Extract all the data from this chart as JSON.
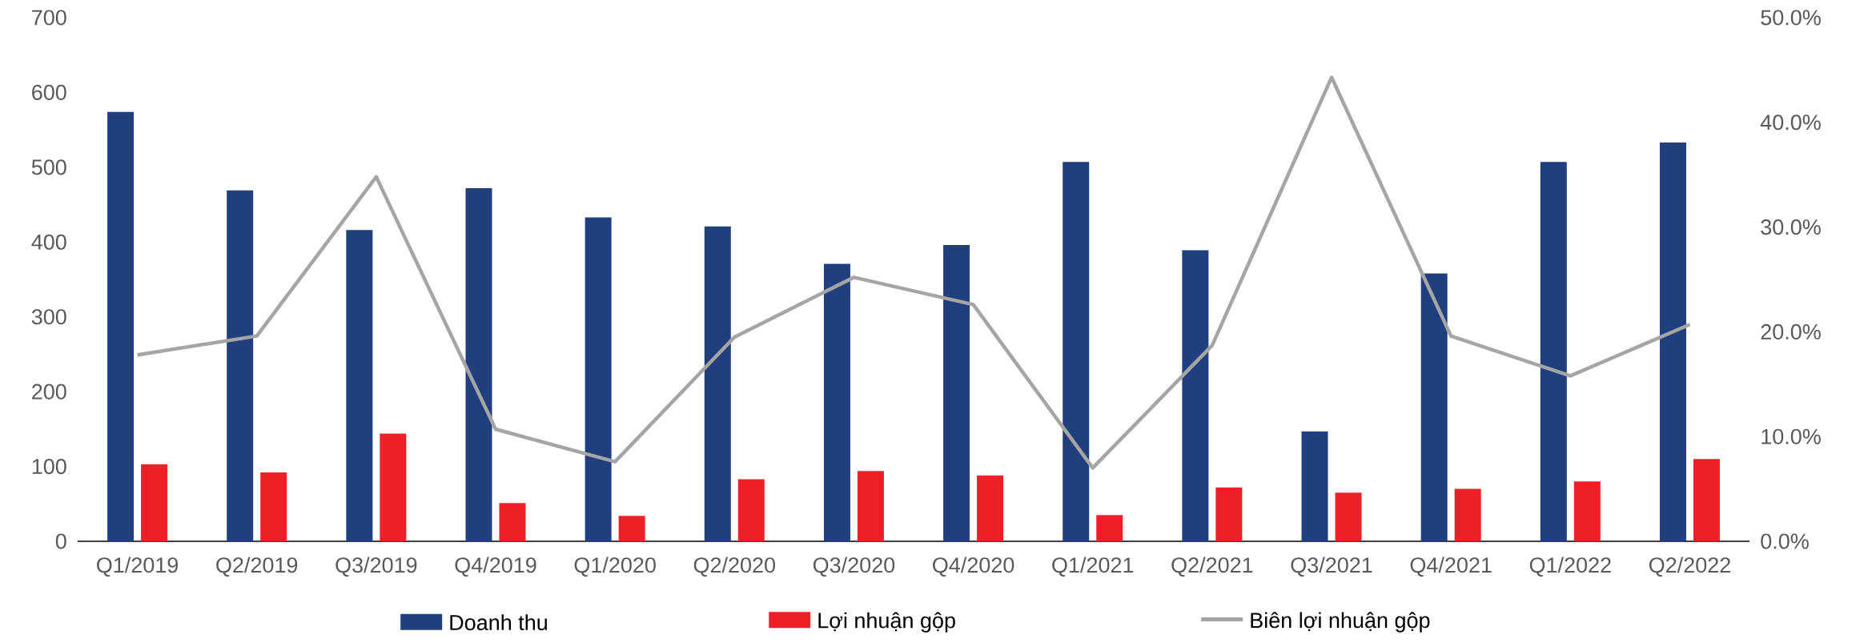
{
  "chart_data": {
    "type": "bar",
    "categories": [
      "Q1/2019",
      "Q2/2019",
      "Q3/2019",
      "Q4/2019",
      "Q1/2020",
      "Q2/2020",
      "Q3/2020",
      "Q4/2020",
      "Q1/2021",
      "Q2/2021",
      "Q3/2021",
      "Q4/2021",
      "Q1/2022",
      "Q2/2022"
    ],
    "series": [
      {
        "name": "Doanh thu",
        "color": "#1f3f7f",
        "values": [
          574,
          469,
          416,
          472,
          433,
          421,
          371,
          396,
          507,
          389,
          147,
          358,
          507,
          533
        ]
      },
      {
        "name": "Lợi nhuận gộp",
        "color": "#ee2027",
        "values": [
          103,
          92,
          144,
          51,
          34,
          83,
          94,
          88,
          35,
          72,
          65,
          70,
          80,
          110
        ]
      },
      {
        "name": "Biên lợi nhuận gộp",
        "color": "#a5a5a5",
        "type": "line",
        "axis": "y2",
        "values": [
          17.8,
          19.6,
          34.8,
          10.7,
          7.6,
          19.5,
          25.2,
          22.6,
          7.0,
          18.7,
          44.3,
          19.6,
          15.8,
          20.7
        ]
      }
    ],
    "ylim": [
      0,
      700
    ],
    "yticks": [
      0,
      100,
      200,
      300,
      400,
      500,
      600,
      700
    ],
    "y2lim": [
      0,
      50
    ],
    "y2ticks": [
      {
        "value": 0,
        "label": "0.0%"
      },
      {
        "value": 10,
        "label": "10.0%"
      },
      {
        "value": 20,
        "label": "20.0%"
      },
      {
        "value": 30,
        "label": "30.0%"
      },
      {
        "value": 40,
        "label": "40.0%"
      },
      {
        "value": 50,
        "label": "50.0%"
      }
    ],
    "legend": "bottom",
    "grid": false,
    "marker": "none"
  }
}
